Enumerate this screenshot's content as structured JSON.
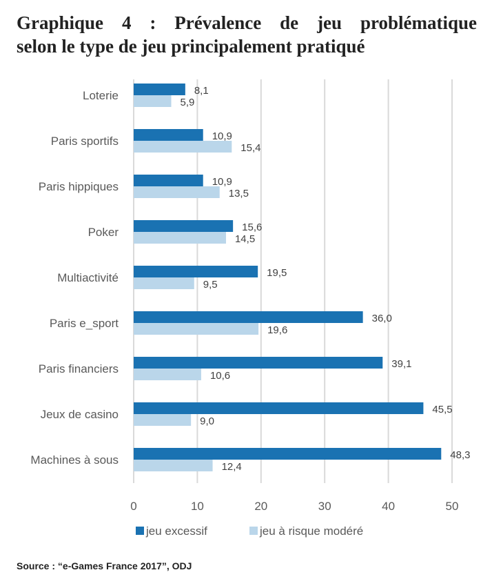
{
  "title": {
    "line1": "Graphique 4 : Prévalence de jeu problématique",
    "line2": "selon le type de jeu principalement pratiqué"
  },
  "source": "Source : “e-Games France 2017”, ODJ",
  "chart_data": {
    "type": "bar",
    "orientation": "horizontal",
    "title": "Graphique 4 : Prévalence de jeu problématique selon le type de jeu principalement pratiqué",
    "xlabel": "",
    "ylabel": "",
    "categories": [
      "Loterie",
      "Paris sportifs",
      "Paris hippiques",
      "Poker",
      "Multiactivité",
      "Paris e_sport",
      "Paris financiers",
      "Jeux de casino",
      "Machines à sous"
    ],
    "series": [
      {
        "name": "jeu excessif",
        "color": "#1a72b2",
        "values": [
          8.1,
          10.9,
          10.9,
          15.6,
          19.5,
          36.0,
          39.1,
          45.5,
          48.3
        ]
      },
      {
        "name": "jeu à risque modéré",
        "color": "#bad6ea",
        "values": [
          5.9,
          15.4,
          13.5,
          14.5,
          9.5,
          19.6,
          10.6,
          9.0,
          12.4
        ]
      }
    ],
    "value_labels": [
      [
        "8,1",
        "10,9",
        "10,9",
        "15,6",
        "19,5",
        "36,0",
        "39,1",
        "45,5",
        "48,3"
      ],
      [
        "5,9",
        "15,4",
        "13,5",
        "14,5",
        "9,5",
        "19,6",
        "10,6",
        "9,0",
        "12,4"
      ]
    ],
    "xlim": [
      0,
      50
    ],
    "xticks": [
      0,
      10,
      20,
      30,
      40,
      50
    ],
    "xtick_labels": [
      "0",
      "10",
      "20",
      "30",
      "40",
      "50"
    ],
    "grid": true,
    "legend_position": "bottom"
  }
}
